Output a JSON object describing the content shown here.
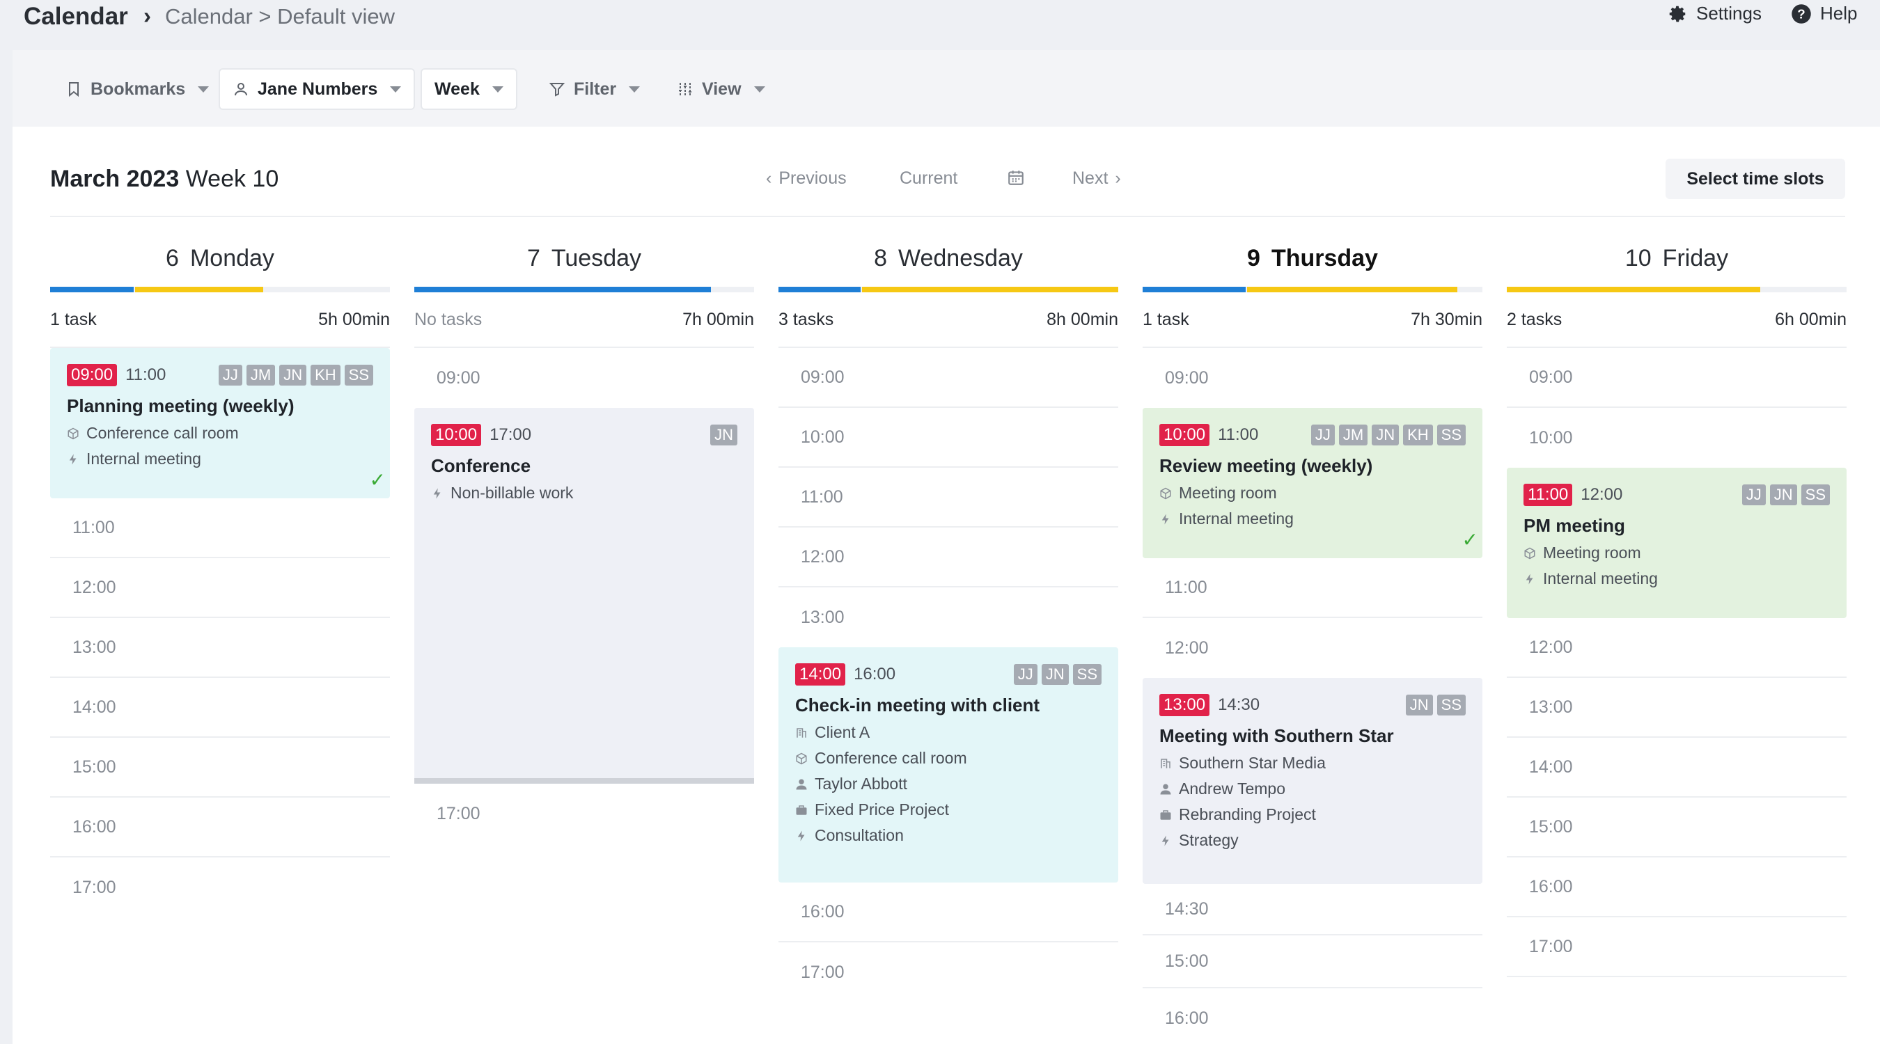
{
  "header": {
    "app_title": "Calendar",
    "separator": "›",
    "breadcrumb": "Calendar > Default view",
    "settings_label": "Settings",
    "help_label": "Help"
  },
  "toolbar": {
    "bookmarks": "Bookmarks",
    "user": "Jane Numbers",
    "period": "Week",
    "filter": "Filter",
    "view": "View"
  },
  "week": {
    "month_year": "March 2023",
    "week_label": "Week 10",
    "previous": "Previous",
    "current": "Current",
    "next": "Next",
    "select_time_slots": "Select time slots"
  },
  "colors": {
    "blue": "#1f7fd6",
    "yellow": "#f6c814",
    "start_badge": "#e1224a"
  },
  "days": [
    {
      "num": "6",
      "name": "Monday",
      "tasks": "1 task",
      "hours": "5h 00min",
      "event": {
        "start": "09:00",
        "end": "11:00",
        "tags": [
          "JJ",
          "JM",
          "JN",
          "KH",
          "SS"
        ],
        "title": "Planning meeting (weekly)",
        "lines": [
          "Conference call room",
          "Internal meeting"
        ]
      },
      "slots": [
        "11:00",
        "12:00",
        "13:00",
        "14:00",
        "15:00",
        "16:00",
        "17:00"
      ]
    },
    {
      "num": "7",
      "name": "Tuesday",
      "tasks": "No tasks",
      "hours": "7h 00min",
      "slots_before": [
        "09:00"
      ],
      "event": {
        "start": "10:00",
        "end": "17:00",
        "tags": [
          "JN"
        ],
        "title": "Conference",
        "lines": [
          "Non-billable work"
        ]
      },
      "slots": [
        "17:00"
      ]
    },
    {
      "num": "8",
      "name": "Wednesday",
      "tasks": "3 tasks",
      "hours": "8h 00min",
      "slots_before": [
        "09:00",
        "10:00",
        "11:00",
        "12:00",
        "13:00"
      ],
      "event": {
        "start": "14:00",
        "end": "16:00",
        "tags": [
          "JJ",
          "JN",
          "SS"
        ],
        "title": "Check-in meeting with client",
        "lines": [
          "Client A",
          "Conference call room",
          "Taylor Abbott",
          "Fixed Price Project",
          "Consultation"
        ]
      },
      "slots": [
        "16:00",
        "17:00"
      ]
    },
    {
      "num": "9",
      "name": "Thursday",
      "tasks": "1 task",
      "hours": "7h 30min",
      "slots_before": [
        "09:00"
      ],
      "event": {
        "start": "10:00",
        "end": "11:00",
        "tags": [
          "JJ",
          "JM",
          "JN",
          "KH",
          "SS"
        ],
        "title": "Review meeting (weekly)",
        "lines": [
          "Meeting room",
          "Internal meeting"
        ]
      },
      "slots_mid": [
        "11:00",
        "12:00"
      ],
      "event2": {
        "start": "13:00",
        "end": "14:30",
        "tags": [
          "JN",
          "SS"
        ],
        "title": "Meeting with Southern Star",
        "lines": [
          "Southern Star Media",
          "Andrew Tempo",
          "Rebranding Project",
          "Strategy"
        ]
      },
      "slots": [
        "14:30",
        "15:00",
        "16:00"
      ]
    },
    {
      "num": "10",
      "name": "Friday",
      "tasks": "2 tasks",
      "hours": "6h 00min",
      "slots_before": [
        "09:00",
        "10:00"
      ],
      "event": {
        "start": "11:00",
        "end": "12:00",
        "tags": [
          "JJ",
          "JN",
          "SS"
        ],
        "title": "PM meeting",
        "lines": [
          "Meeting room",
          "Internal meeting"
        ]
      },
      "slots": [
        "12:00",
        "13:00",
        "14:00",
        "15:00",
        "16:00",
        "17:00"
      ]
    }
  ]
}
